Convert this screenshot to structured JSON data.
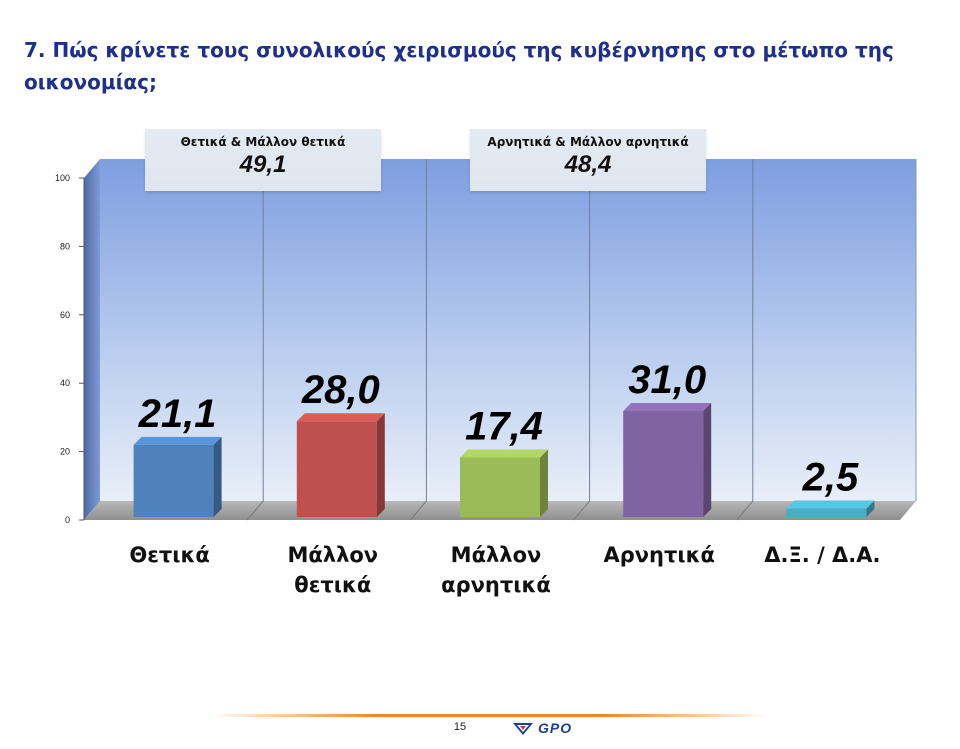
{
  "title": "7. Πώς κρίνετε τους συνολικούς χειρισμούς της κυβέρνησης στο μέτωπο της οικονομίας;",
  "summary_boxes": [
    {
      "label": "Θετικά & Μάλλον θετικά",
      "value": "49,1"
    },
    {
      "label": "Αρνητικά & Μάλλον αρνητικά",
      "value": "48,4"
    }
  ],
  "chart_data": {
    "type": "bar",
    "title": "",
    "xlabel": "",
    "ylabel": "",
    "categories": [
      [
        "Θετικά"
      ],
      [
        "Μάλλον",
        "θετικά"
      ],
      [
        "Μάλλον",
        "αρνητικά"
      ],
      [
        "Αρνητικά"
      ],
      [
        "Δ.Ξ. / Δ.Α."
      ]
    ],
    "values": [
      21.1,
      28.0,
      17.4,
      31.0,
      2.5
    ],
    "value_labels": [
      "21,1",
      "28,0",
      "17,4",
      "31,0",
      "2,5"
    ],
    "colors": [
      "#4f81bd",
      "#c0504d",
      "#9bbb59",
      "#8064a2",
      "#4bacc6"
    ],
    "ylim": [
      0,
      100
    ],
    "yticks": [
      0,
      20,
      40,
      60,
      80,
      100
    ],
    "grid": true,
    "legend": "none"
  },
  "footer": {
    "page_number": "15",
    "logo_text": "GPO",
    "logo_icon": "gpo-logo-icon"
  }
}
